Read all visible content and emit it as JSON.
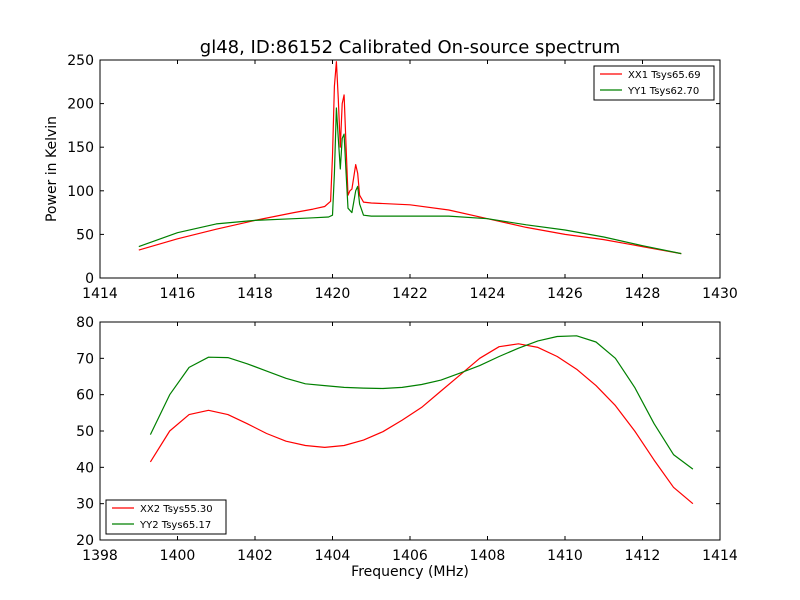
{
  "chart_data": [
    {
      "type": "line",
      "title": "gl48, ID:86152 Calibrated On-source spectrum",
      "xlabel": "",
      "ylabel": "Power in Kelvin",
      "xlim": [
        1414,
        1430
      ],
      "ylim": [
        0,
        250
      ],
      "xticks": [
        "1414",
        "1416",
        "1418",
        "1420",
        "1422",
        "1424",
        "1426",
        "1428",
        "1430"
      ],
      "yticks": [
        "0",
        "50",
        "100",
        "150",
        "200",
        "250"
      ],
      "legend_position": "top-right",
      "grid": false,
      "series": [
        {
          "name": "XX1 Tsys65.69",
          "color": "#ff0000",
          "x": [
            1415.0,
            1416.0,
            1417.0,
            1418.0,
            1419.0,
            1419.5,
            1419.8,
            1419.95,
            1420.0,
            1420.05,
            1420.1,
            1420.15,
            1420.2,
            1420.25,
            1420.3,
            1420.35,
            1420.4,
            1420.45,
            1420.5,
            1420.6,
            1420.65,
            1420.7,
            1420.8,
            1421.0,
            1422.0,
            1423.0,
            1424.0,
            1425.0,
            1426.0,
            1427.0,
            1428.0,
            1429.0
          ],
          "y": [
            32,
            45,
            56,
            66,
            75,
            79,
            82,
            88,
            140,
            220,
            248,
            205,
            150,
            200,
            210,
            150,
            95,
            100,
            102,
            130,
            120,
            95,
            87,
            86,
            84,
            78,
            68,
            58,
            50,
            44,
            36,
            28
          ]
        },
        {
          "name": "YY1 Tsys62.70",
          "color": "#008000",
          "x": [
            1415.0,
            1416.0,
            1417.0,
            1418.0,
            1419.0,
            1419.5,
            1419.9,
            1420.0,
            1420.05,
            1420.1,
            1420.15,
            1420.2,
            1420.25,
            1420.3,
            1420.35,
            1420.4,
            1420.5,
            1420.6,
            1420.65,
            1420.7,
            1420.8,
            1421.0,
            1422.0,
            1423.0,
            1424.0,
            1425.0,
            1426.0,
            1427.0,
            1428.0,
            1429.0
          ],
          "y": [
            36,
            52,
            62,
            66,
            68,
            69,
            70,
            72,
            120,
            195,
            160,
            125,
            160,
            165,
            120,
            80,
            75,
            100,
            105,
            85,
            72,
            71,
            71,
            71,
            68,
            61,
            55,
            47,
            37,
            28
          ]
        }
      ]
    },
    {
      "type": "line",
      "title": "",
      "xlabel": "Frequency (MHz)",
      "ylabel": "",
      "xlim": [
        1398,
        1414
      ],
      "ylim": [
        20,
        80
      ],
      "xticks": [
        "1398",
        "1400",
        "1402",
        "1404",
        "1406",
        "1408",
        "1410",
        "1412",
        "1414"
      ],
      "yticks": [
        "20",
        "30",
        "40",
        "50",
        "60",
        "70",
        "80"
      ],
      "legend_position": "bottom-left",
      "grid": false,
      "series": [
        {
          "name": "XX2 Tsys55.30",
          "color": "#ff0000",
          "x": [
            1399.3,
            1399.8,
            1400.3,
            1400.8,
            1401.3,
            1401.8,
            1402.3,
            1402.8,
            1403.3,
            1403.8,
            1404.3,
            1404.8,
            1405.3,
            1405.8,
            1406.3,
            1406.8,
            1407.3,
            1407.8,
            1408.3,
            1408.8,
            1409.3,
            1409.8,
            1410.3,
            1410.8,
            1411.3,
            1411.8,
            1412.3,
            1412.8,
            1413.3
          ],
          "y": [
            41.5,
            50,
            54.5,
            55.7,
            54.5,
            52,
            49.3,
            47.2,
            46,
            45.5,
            46,
            47.5,
            49.8,
            53,
            56.5,
            61,
            65.5,
            70,
            73.2,
            74,
            73,
            70.5,
            67,
            62.5,
            57,
            50,
            42,
            34.5,
            30
          ]
        },
        {
          "name": "YY2 Tsys65.17",
          "color": "#008000",
          "x": [
            1399.3,
            1399.8,
            1400.3,
            1400.8,
            1401.3,
            1401.8,
            1402.3,
            1402.8,
            1403.3,
            1403.8,
            1404.3,
            1404.8,
            1405.3,
            1405.8,
            1406.3,
            1406.8,
            1407.3,
            1407.8,
            1408.3,
            1408.8,
            1409.3,
            1409.8,
            1410.3,
            1410.8,
            1411.3,
            1411.8,
            1412.3,
            1412.8,
            1413.3
          ],
          "y": [
            49,
            60,
            67.5,
            70.3,
            70.2,
            68.5,
            66.5,
            64.5,
            63,
            62.5,
            62,
            61.8,
            61.7,
            62,
            62.8,
            64,
            66,
            68,
            70.5,
            72.8,
            74.8,
            76,
            76.2,
            74.5,
            70,
            62,
            52,
            43.5,
            39.5
          ]
        }
      ]
    }
  ]
}
